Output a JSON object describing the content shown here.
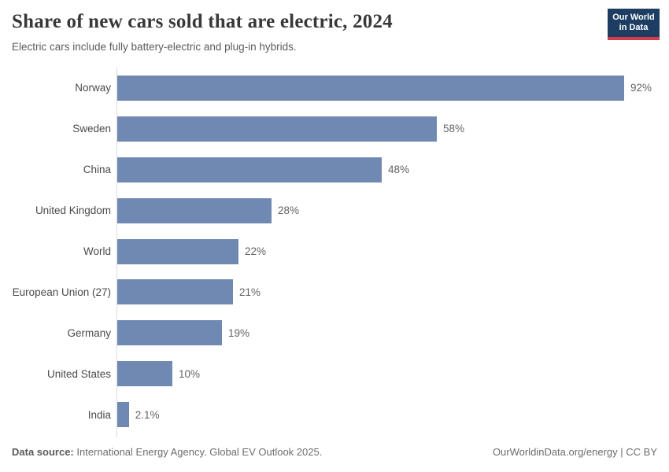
{
  "header": {
    "title": "Share of new cars sold that are electric, 2024",
    "subtitle": "Electric cars include fully battery-electric and plug-in hybrids.",
    "logo": {
      "line1": "Our World",
      "line2": "in Data",
      "bg_color": "#1d3d63",
      "accent_color": "#d93a4a"
    }
  },
  "chart_data": {
    "type": "bar",
    "orientation": "horizontal",
    "title": "Share of new cars sold that are electric, 2024",
    "categories": [
      "Norway",
      "Sweden",
      "China",
      "United Kingdom",
      "World",
      "European Union (27)",
      "Germany",
      "United States",
      "India"
    ],
    "values": [
      92,
      58,
      48,
      28,
      22,
      21,
      19,
      10,
      2.1
    ],
    "value_labels": [
      "92%",
      "58%",
      "48%",
      "28%",
      "22%",
      "21%",
      "19%",
      "10%",
      "2.1%"
    ],
    "unit": "%",
    "xlim": [
      0,
      100
    ],
    "grid": false,
    "legend": "none",
    "bar_color": "#7089b2"
  },
  "footer": {
    "source_label": "Data source:",
    "source_text": " International Energy Agency. Global EV Outlook 2025.",
    "credit": "OurWorldinData.org/energy | CC BY"
  }
}
